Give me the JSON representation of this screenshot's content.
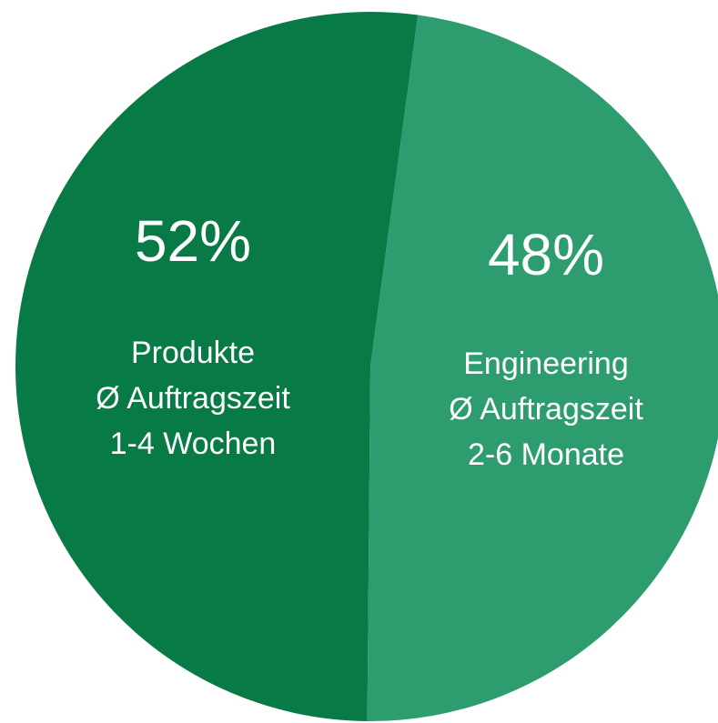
{
  "chart_data": {
    "type": "pie",
    "categories": [
      [
        "Produkte",
        "Ø Auftragszeit",
        "1-4 Wochen"
      ],
      [
        "Engineering",
        "Ø Auftragszeit",
        "2-6 Monate"
      ]
    ],
    "values": [
      52,
      48
    ],
    "value_labels": [
      "52%",
      "48%"
    ],
    "colors": [
      "#077a45",
      "#2d9d6f"
    ]
  }
}
